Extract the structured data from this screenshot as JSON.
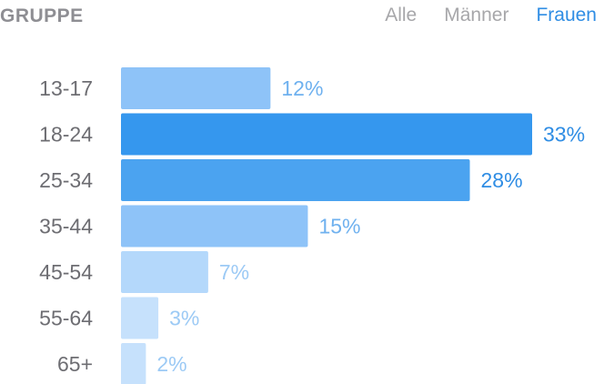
{
  "header": {
    "title": "GRUPPE",
    "tabs": [
      {
        "label": "Alle",
        "active": false
      },
      {
        "label": "Männer",
        "active": false
      },
      {
        "label": "Frauen",
        "active": true
      }
    ]
  },
  "colors": {
    "accent": "#2f8de4",
    "tab_inactive": "#a7a7aa",
    "title": "#8e8e93",
    "bar_strongest": "#3597ee",
    "bar_strong": "#4ba3f0",
    "bar_medium": "#8ec3f8",
    "bar_light": "#b4d8fb",
    "bar_lightest": "#c6e1fc"
  },
  "chart_data": {
    "type": "bar",
    "orientation": "horizontal",
    "categories": [
      "13-17",
      "18-24",
      "25-34",
      "35-44",
      "45-54",
      "55-64",
      "65+"
    ],
    "values": [
      12,
      33,
      28,
      15,
      7,
      3,
      2
    ],
    "value_labels": [
      "12%",
      "33%",
      "28%",
      "15%",
      "7%",
      "3%",
      "2%"
    ],
    "unit": "%",
    "xlim": [
      0,
      33
    ],
    "grid": false,
    "legend": "none"
  }
}
